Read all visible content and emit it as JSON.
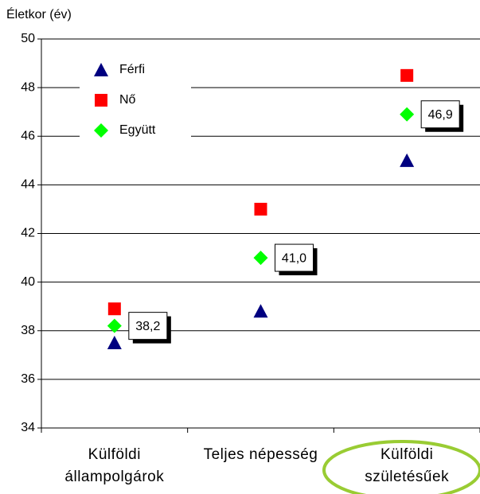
{
  "chart_data": {
    "type": "scatter",
    "y_label": "Életkor (év)",
    "categories": [
      "Külföldi állampolgárok",
      "Teljes népesség",
      "Külföldi születésűek"
    ],
    "series": [
      {
        "name": "Férfi",
        "color": "#000080",
        "marker": "triangle",
        "values": [
          37.5,
          38.8,
          45.0
        ]
      },
      {
        "name": "Nő",
        "color": "#ff0000",
        "marker": "square",
        "values": [
          38.9,
          43.0,
          48.5
        ]
      },
      {
        "name": "Együtt",
        "color": "#00ff00",
        "marker": "diamond",
        "values": [
          38.2,
          41.0,
          46.9
        ],
        "value_labels": [
          "38,2",
          "41,0",
          "46,9"
        ]
      }
    ],
    "ylim": [
      34,
      50
    ],
    "yticks": [
      34,
      36,
      38,
      40,
      42,
      44,
      46,
      48,
      50
    ],
    "grid": true,
    "legend": "upper left"
  }
}
